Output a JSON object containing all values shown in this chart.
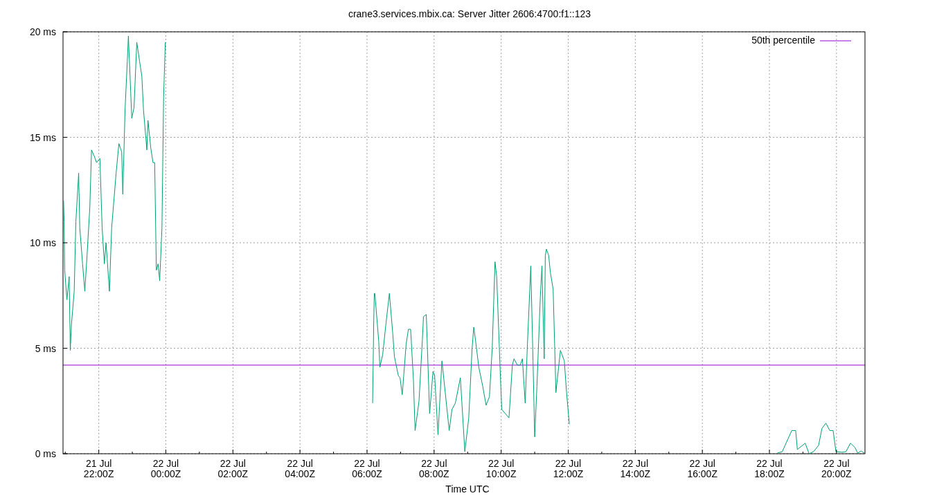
{
  "chart_data": {
    "type": "line",
    "title": "crane3.services.mbix.ca: Server Jitter 2606:4700:f1::123",
    "xlabel": "Time UTC",
    "xlim": [
      "--07-21T20:56",
      "--07-22T20:51"
    ],
    "xticks": [
      {
        "value": "--07-21T21:00",
        "label": null
      },
      {
        "value": "--07-21T22:00",
        "label": "21 Jul\n22:00Z"
      },
      {
        "value": "--07-21T23:00",
        "label": null
      },
      {
        "value": "--07-22T00:00",
        "label": "22 Jul\n00:00Z"
      },
      {
        "value": "--07-22T01:00",
        "label": null
      },
      {
        "value": "--07-22T02:00",
        "label": "22 Jul\n02:00Z"
      },
      {
        "value": "--07-22T03:00",
        "label": null
      },
      {
        "value": "--07-22T04:00",
        "label": "22 Jul\n04:00Z"
      },
      {
        "value": "--07-22T05:00",
        "label": null
      },
      {
        "value": "--07-22T06:00",
        "label": "22 Jul\n06:00Z"
      },
      {
        "value": "--07-22T07:00",
        "label": null
      },
      {
        "value": "--07-22T08:00",
        "label": "22 Jul\n08:00Z"
      },
      {
        "value": "--07-22T09:00",
        "label": null
      },
      {
        "value": "--07-22T10:00",
        "label": "22 Jul\n10:00Z"
      },
      {
        "value": "--07-22T11:00",
        "label": null
      },
      {
        "value": "--07-22T12:00",
        "label": "22 Jul\n12:00Z"
      },
      {
        "value": "--07-22T13:00",
        "label": null
      },
      {
        "value": "--07-22T14:00",
        "label": "22 Jul\n14:00Z"
      },
      {
        "value": "--07-22T15:00",
        "label": null
      },
      {
        "value": "--07-22T16:00",
        "label": "22 Jul\n16:00Z"
      },
      {
        "value": "--07-22T17:00",
        "label": null
      },
      {
        "value": "--07-22T18:00",
        "label": "22 Jul\n18:00Z"
      },
      {
        "value": "--07-22T19:00",
        "label": null
      },
      {
        "value": "--07-22T20:00",
        "label": "22 Jul\n20:00Z"
      }
    ],
    "ylim": [
      0,
      20
    ],
    "yticks": [
      {
        "value": 0,
        "label": "0 ms"
      },
      {
        "value": 5,
        "label": "5 ms"
      },
      {
        "value": 10,
        "label": "10 ms"
      },
      {
        "value": 15,
        "label": "15 ms"
      },
      {
        "value": 20,
        "label": "20 ms"
      }
    ],
    "grid": true,
    "legend": "top right",
    "line_style": "solid",
    "ref_lines": [
      {
        "axis": "y",
        "value": 4.2,
        "label": "50th percentile",
        "color": "#9400d3"
      }
    ],
    "series": [
      {
        "color": "#009e73",
        "x": [
          "--07-21T20:57",
          "--07-21T20:58",
          "--07-21T20:59",
          "--07-21T21:03",
          "--07-21T21:07",
          "--07-21T21:09",
          "--07-21T21:11",
          "--07-21T21:16",
          "--07-21T21:19",
          "--07-21T21:24",
          "--07-21T21:26",
          "--07-21T21:31",
          "--07-21T21:35",
          "--07-21T21:39",
          "--07-21T21:44",
          "--07-21T21:47",
          "--07-21T21:52",
          "--07-21T21:56",
          "--07-21T22:02",
          "--07-21T22:06",
          "--07-21T22:10",
          "--07-21T22:13",
          "--07-21T22:19",
          "--07-21T22:23",
          "--07-21T22:31",
          "--07-21T22:36",
          "--07-21T22:41",
          "--07-21T22:43",
          "--07-21T22:47",
          "--07-21T22:51",
          "--07-21T22:53",
          "--07-21T22:57",
          "--07-21T22:59",
          "--07-21T23:03",
          "--07-21T23:08",
          "--07-21T23:13",
          "--07-21T23:17",
          "--07-21T23:20",
          "--07-21T23:26",
          "--07-21T23:28",
          "--07-21T23:33",
          "--07-21T23:37",
          "--07-21T23:40",
          "--07-21T23:43",
          "--07-21T23:46",
          "--07-21T23:49",
          "--07-21T23:53",
          "--07-21T23:56",
          "--07-21T23:59",
          "--07-22T01:00",
          "--07-22T06:10",
          "--07-22T06:12",
          "--07-22T06:13",
          "--07-22T06:14",
          "--07-22T06:21",
          "--07-22T06:23",
          "--07-22T06:28",
          "--07-22T06:34",
          "--07-22T06:40",
          "--07-22T06:46",
          "--07-22T06:49",
          "--07-22T06:56",
          "--07-22T06:59",
          "--07-22T07:03",
          "--07-22T07:10",
          "--07-22T07:14",
          "--07-22T07:18",
          "--07-22T07:23",
          "--07-22T07:26",
          "--07-22T07:33",
          "--07-22T07:39",
          "--07-22T07:41",
          "--07-22T07:46",
          "--07-22T07:52",
          "--07-22T07:58",
          "--07-22T08:01",
          "--07-22T08:07",
          "--07-22T08:14",
          "--07-22T08:16",
          "--07-22T08:27",
          "--07-22T08:32",
          "--07-22T08:38",
          "--07-22T08:47",
          "--07-22T08:55",
          "--07-22T09:02",
          "--07-22T09:08",
          "--07-22T09:11",
          "--07-22T09:14",
          "--07-22T09:20",
          "--07-22T09:27",
          "--07-22T09:33",
          "--07-22T09:39",
          "--07-22T09:44",
          "--07-22T09:49",
          "--07-22T09:52",
          "--07-22T09:58",
          "--07-22T10:01",
          "--07-22T10:14",
          "--07-22T10:20",
          "--07-22T10:23",
          "--07-22T10:29",
          "--07-22T10:34",
          "--07-22T10:38",
          "--07-22T10:43",
          "--07-22T10:47",
          "--07-22T10:53",
          "--07-22T10:57",
          "--07-22T11:00",
          "--07-22T11:04",
          "--07-22T11:10",
          "--07-22T11:13",
          "--07-22T11:17",
          "--07-22T11:19",
          "--07-22T11:21",
          "--07-22T11:25",
          "--07-22T11:28",
          "--07-22T11:33",
          "--07-22T11:38",
          "--07-22T11:42",
          "--07-22T11:46",
          "--07-22T11:53",
          "--07-22T11:57",
          "--07-22T12:02",
          "--07-22T13:00",
          "--07-22T18:14",
          "--07-22T18:23",
          "--07-22T18:40",
          "--07-22T18:47",
          "--07-22T18:50",
          "--07-22T19:04",
          "--07-22T19:11",
          "--07-22T19:19",
          "--07-22T19:28",
          "--07-22T19:34",
          "--07-22T19:41",
          "--07-22T19:48",
          "--07-22T19:54",
          "--07-22T19:59",
          "--07-22T20:10",
          "--07-22T20:17",
          "--07-22T20:25",
          "--07-22T20:33",
          "--07-22T20:38",
          "--07-22T20:44",
          "--07-22T20:50"
        ],
        "values": [
          12.0,
          11.0,
          8.7,
          7.3,
          8.4,
          4.9,
          6.1,
          7.7,
          11.0,
          13.3,
          10.7,
          9.0,
          7.7,
          9.4,
          11.7,
          14.4,
          14.1,
          13.8,
          14.0,
          10.7,
          9.0,
          10.0,
          7.7,
          10.7,
          13.3,
          14.7,
          14.3,
          12.3,
          16.3,
          18.6,
          19.8,
          17.2,
          15.9,
          16.4,
          19.5,
          18.6,
          17.9,
          16.3,
          14.4,
          15.8,
          14.5,
          13.8,
          13.8,
          8.7,
          9.0,
          8.2,
          10.7,
          16.9,
          19.5,
          null,
          2.4,
          6.3,
          7.6,
          7.6,
          5.3,
          4.1,
          4.7,
          6.2,
          7.6,
          5.7,
          4.6,
          3.7,
          3.6,
          2.8,
          5.2,
          5.9,
          5.9,
          3.5,
          1.1,
          2.5,
          5.4,
          6.5,
          6.6,
          1.9,
          3.9,
          3.7,
          0.9,
          4.4,
          3.9,
          1.1,
          2.1,
          2.4,
          3.6,
          0.1,
          1.7,
          5.0,
          6.0,
          5.4,
          4.1,
          3.2,
          2.3,
          2.7,
          5.0,
          9.1,
          8.4,
          4.1,
          2.1,
          1.7,
          4.2,
          4.5,
          4.2,
          4.2,
          4.5,
          2.4,
          5.2,
          8.9,
          4.4,
          0.8,
          3.2,
          7.4,
          8.9,
          4.5,
          9.4,
          9.7,
          9.4,
          8.6,
          7.8,
          2.9,
          3.9,
          4.9,
          4.4,
          2.9,
          1.4,
          null,
          0.03,
          0.1,
          1.1,
          1.1,
          0.2,
          0.5,
          0,
          0.1,
          0.4,
          1.2,
          1.45,
          1.1,
          1.1,
          0.1,
          0.07,
          0.1,
          0.5,
          0.3,
          0.03,
          0.13,
          0.03
        ]
      }
    ]
  }
}
